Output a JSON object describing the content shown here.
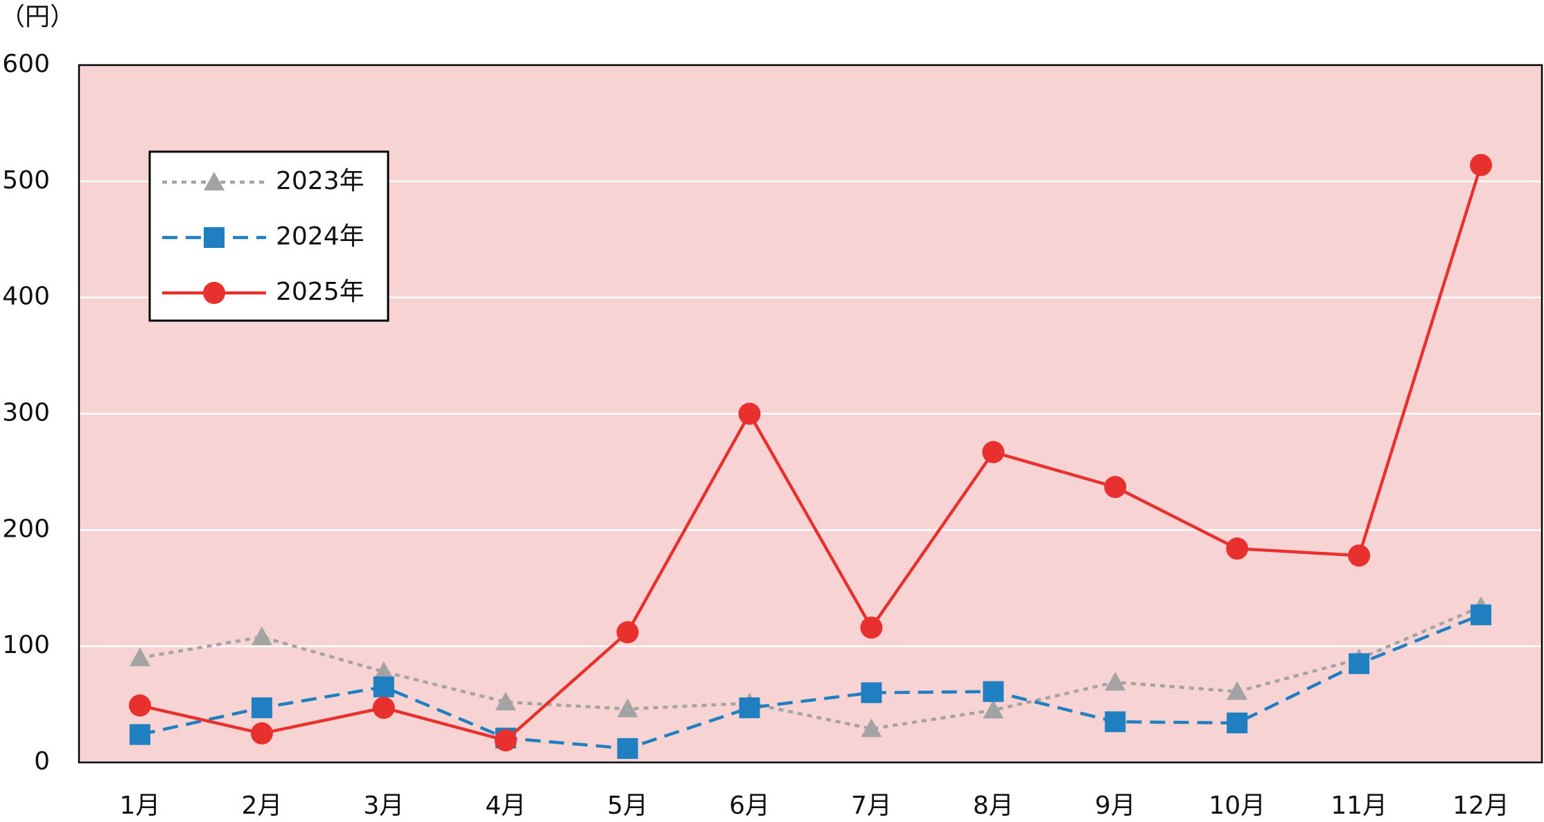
{
  "chart_data": {
    "type": "line",
    "y_label": "（円）",
    "categories": [
      "1月",
      "2月",
      "3月",
      "4月",
      "5月",
      "6月",
      "7月",
      "8月",
      "9月",
      "10月",
      "11月",
      "12月"
    ],
    "series": [
      {
        "name": "2023年",
        "color": "#a3a3a3",
        "dash": "dotted",
        "marker": "triangle",
        "values": [
          90,
          108,
          78,
          52,
          46,
          51,
          29,
          45,
          69,
          61,
          89,
          134
        ]
      },
      {
        "name": "2024年",
        "color": "#1f7fc1",
        "dash": "dashed",
        "marker": "square",
        "values": [
          24,
          47,
          65,
          21,
          12,
          47,
          60,
          61,
          35,
          34,
          85,
          127
        ]
      },
      {
        "name": "2025年",
        "color": "#e8312f",
        "dash": "solid",
        "marker": "circle",
        "values": [
          49,
          25,
          47,
          19,
          112,
          300,
          116,
          267,
          237,
          184,
          178,
          514
        ]
      }
    ],
    "ylim": [
      0,
      600
    ],
    "yticks": [
      0,
      100,
      200,
      300,
      400,
      500,
      600
    ],
    "grid": true,
    "legend": "upper-left",
    "background": "#f7d3d3"
  }
}
